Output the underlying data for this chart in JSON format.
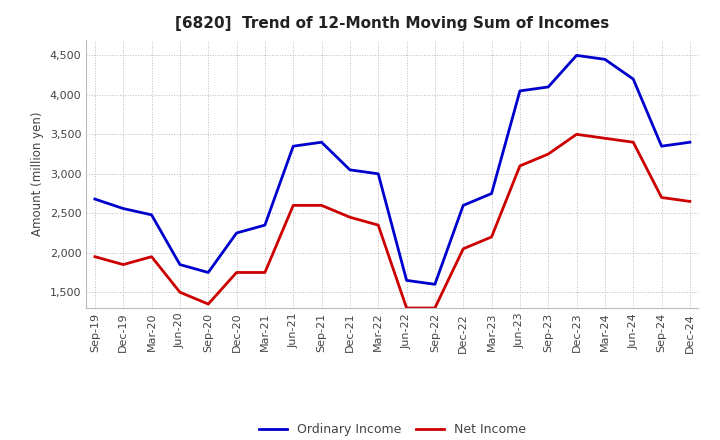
{
  "title": "[6820]  Trend of 12-Month Moving Sum of Incomes",
  "ylabel": "Amount (million yen)",
  "x_labels": [
    "Sep-19",
    "Dec-19",
    "Mar-20",
    "Jun-20",
    "Sep-20",
    "Dec-20",
    "Mar-21",
    "Jun-21",
    "Sep-21",
    "Dec-21",
    "Mar-22",
    "Jun-22",
    "Sep-22",
    "Dec-22",
    "Mar-23",
    "Jun-23",
    "Sep-23",
    "Dec-23",
    "Mar-24",
    "Jun-24",
    "Sep-24",
    "Dec-24"
  ],
  "ordinary_income": [
    2680,
    2560,
    2480,
    1850,
    1750,
    2250,
    2350,
    3350,
    3400,
    3050,
    3000,
    1650,
    1600,
    2600,
    2750,
    4050,
    4100,
    4500,
    4450,
    4200,
    3350,
    3400
  ],
  "net_income": [
    1950,
    1850,
    1950,
    1500,
    1350,
    1750,
    1750,
    2600,
    2600,
    2450,
    2350,
    1300,
    1300,
    2050,
    2200,
    3100,
    3250,
    3500,
    3450,
    3400,
    2700,
    2650
  ],
  "ordinary_income_color": "#0000cc",
  "net_income_color": "#cc0000",
  "ylim": [
    1300,
    4700
  ],
  "yticks": [
    1500,
    2000,
    2500,
    3000,
    3500,
    4000,
    4500
  ],
  "background_color": "#ffffff",
  "grid_color": "#bbbbbb",
  "title_fontsize": 11,
  "label_fontsize": 8.5,
  "tick_fontsize": 8,
  "linewidth": 2.0
}
